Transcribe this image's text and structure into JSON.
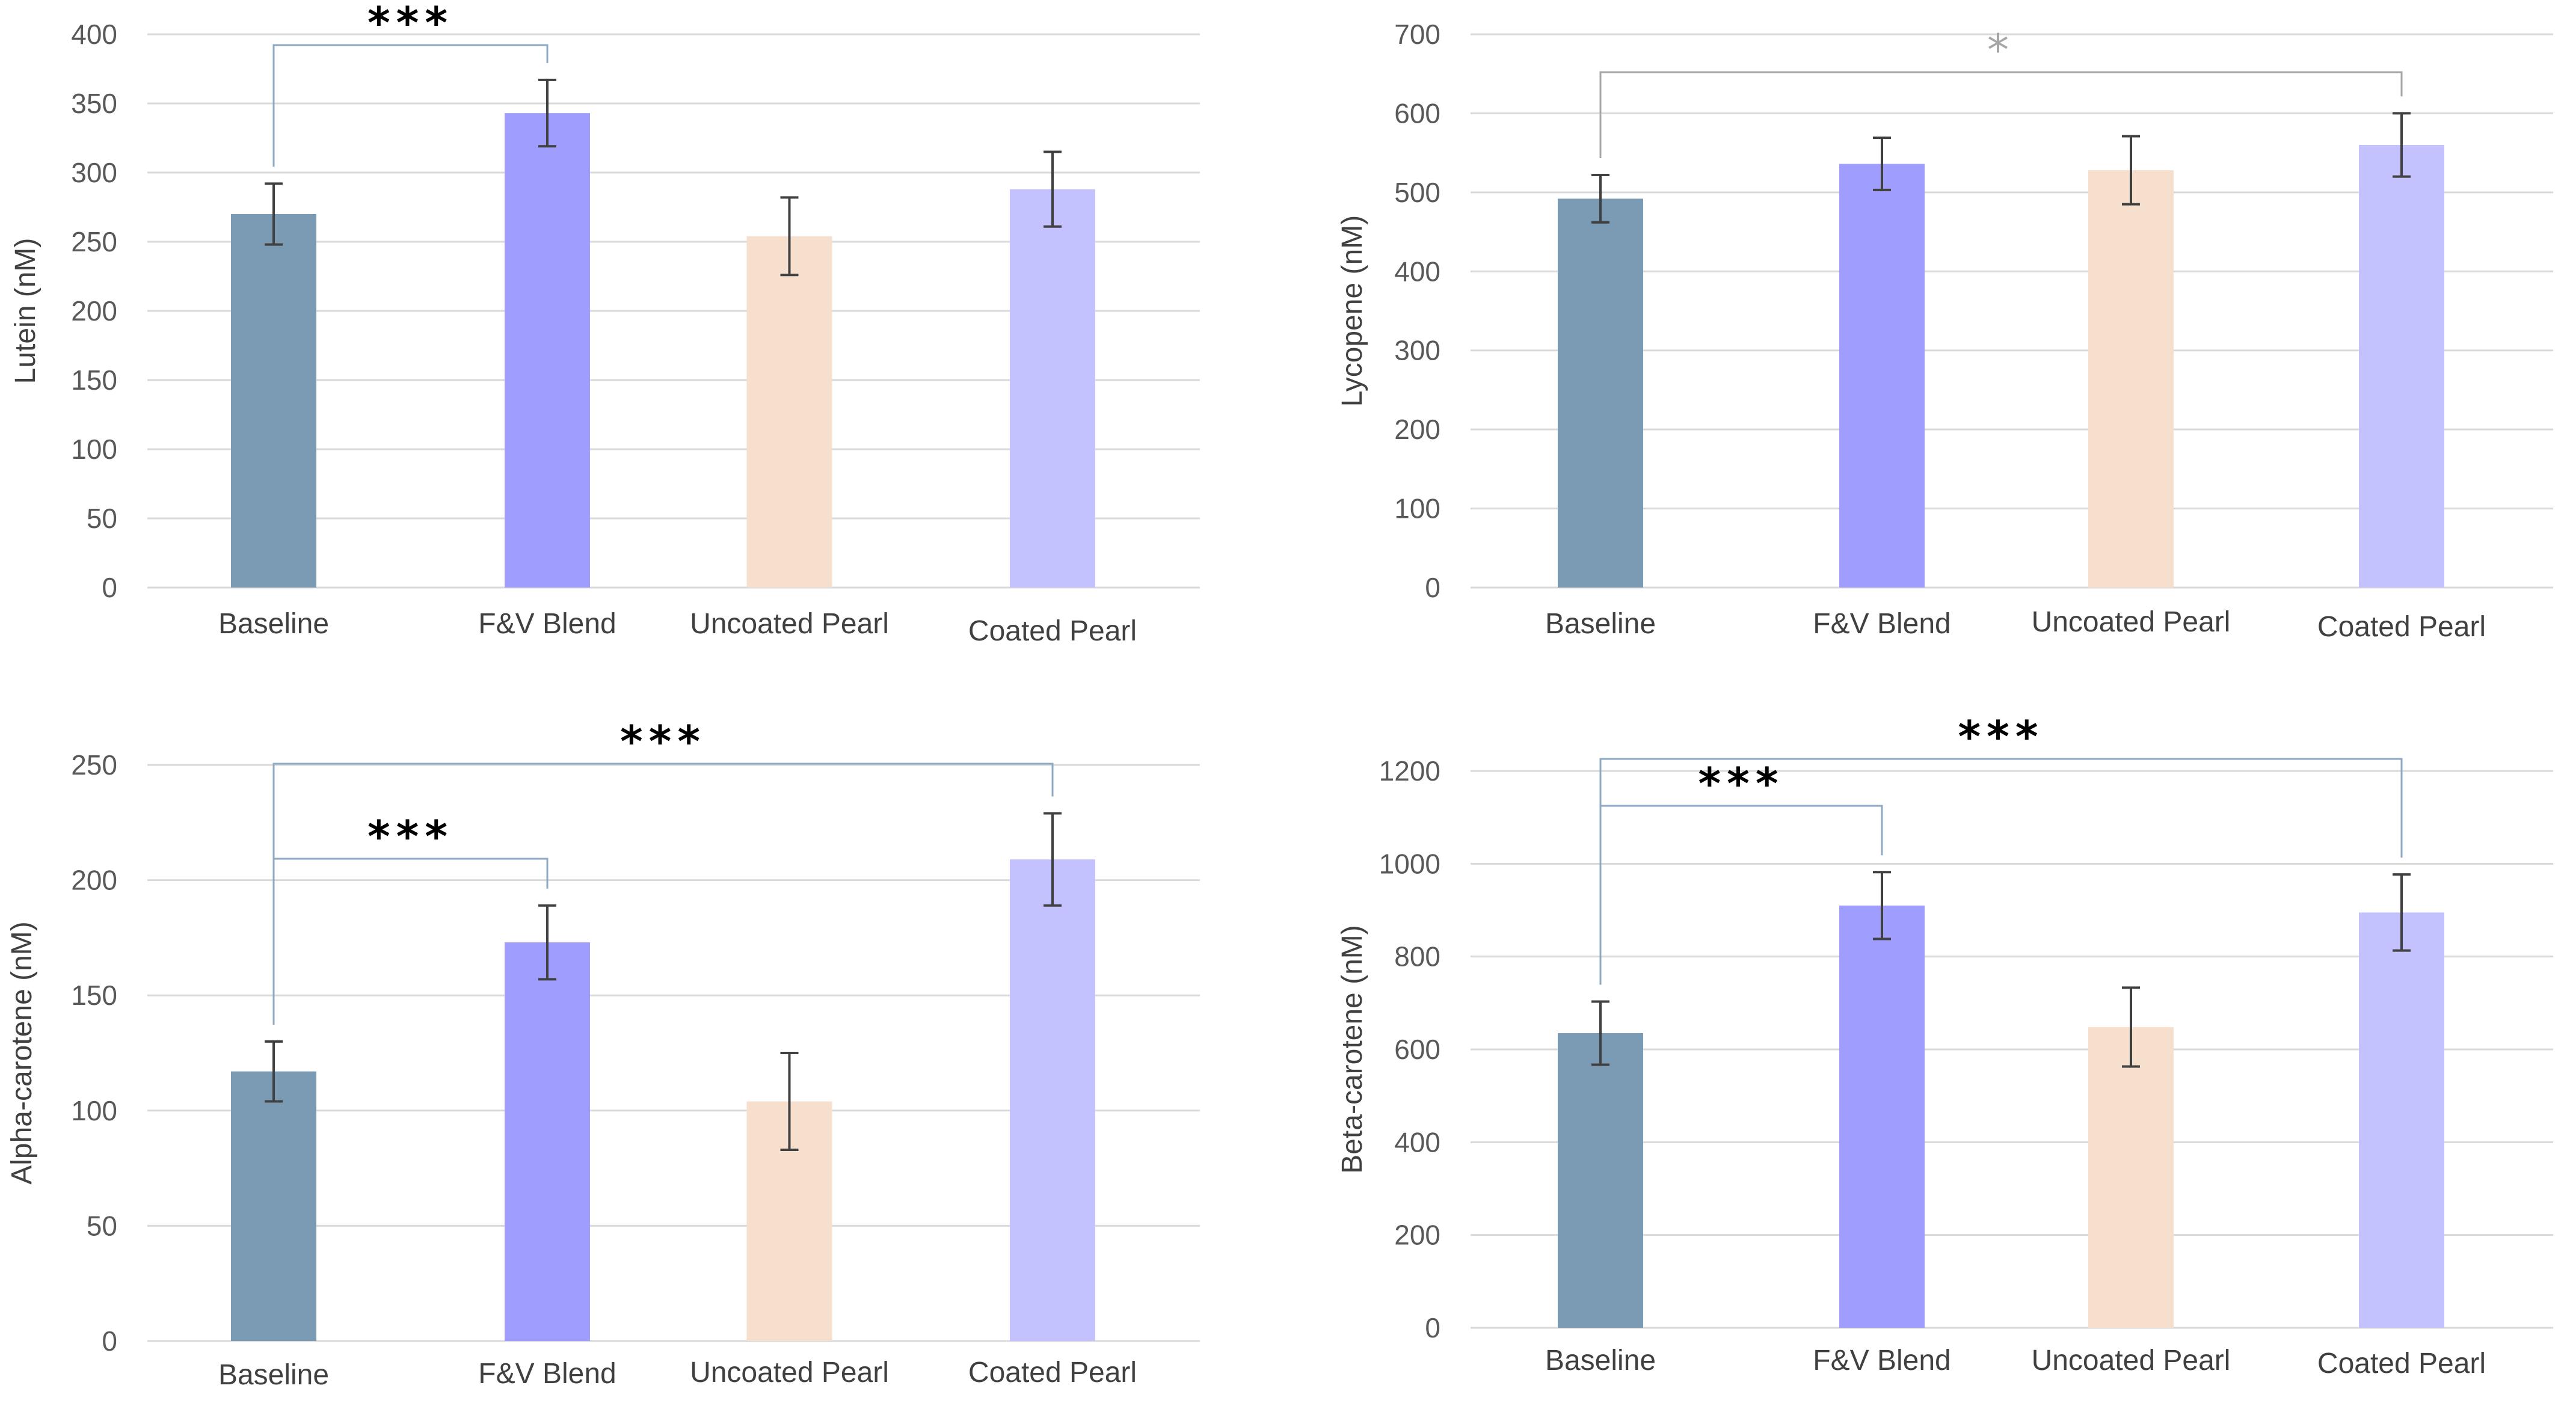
{
  "colors": {
    "Baseline": "#7b9ab4",
    "F&V Blend": "#9f9dfd",
    "Uncoated Pearl": "#f6dfcd",
    "Coated Pearl": "#c3c2fe",
    "grid": "#d9d9d9",
    "bracket": "#8ea9c4",
    "bracket_faint": "#a6a6a6",
    "error": "#404040"
  },
  "chart_data": [
    {
      "type": "bar",
      "ylabel": "Lutein (nM)",
      "categories": [
        "Baseline",
        "F&V Blend",
        "Uncoated Pearl",
        "Coated Pearl"
      ],
      "values": [
        270,
        343,
        254,
        288
      ],
      "errors": [
        22,
        24,
        28,
        27
      ],
      "ylim": [
        0,
        400
      ],
      "yticks": [
        0,
        50,
        100,
        150,
        200,
        250,
        300,
        350,
        400
      ],
      "significance": [
        {
          "from": 0,
          "to": 1,
          "label": "***",
          "faint": false
        }
      ]
    },
    {
      "type": "bar",
      "ylabel": "Lycopene (nM)",
      "categories": [
        "Baseline",
        "F&V Blend",
        "Uncoated Pearl",
        "Coated Pearl"
      ],
      "values": [
        492,
        536,
        528,
        560
      ],
      "errors": [
        30,
        33,
        43,
        40
      ],
      "ylim": [
        0,
        700
      ],
      "yticks": [
        0,
        100,
        200,
        300,
        400,
        500,
        600,
        700
      ],
      "significance": [
        {
          "from": 0,
          "to": 3,
          "label": "*",
          "faint": true
        }
      ]
    },
    {
      "type": "bar",
      "ylabel": "Alpha-carotene (nM)",
      "categories": [
        "Baseline",
        "F&V Blend",
        "Uncoated Pearl",
        "Coated Pearl"
      ],
      "values": [
        117,
        173,
        104,
        209
      ],
      "errors": [
        13,
        16,
        21,
        20
      ],
      "ylim": [
        0,
        250
      ],
      "yticks": [
        0,
        50,
        100,
        150,
        200,
        250
      ],
      "significance": [
        {
          "from": 0,
          "to": 1,
          "label": "***",
          "faint": false
        },
        {
          "from": 0,
          "to": 3,
          "label": "***",
          "faint": false
        }
      ]
    },
    {
      "type": "bar",
      "ylabel": "Beta-carotene (nM)",
      "categories": [
        "Baseline",
        "F&V Blend",
        "Uncoated Pearl",
        "Coated Pearl"
      ],
      "values": [
        635,
        910,
        648,
        895
      ],
      "errors": [
        68,
        72,
        85,
        82
      ],
      "ylim": [
        0,
        1200
      ],
      "yticks": [
        0,
        200,
        400,
        600,
        800,
        1000,
        1200
      ],
      "significance": [
        {
          "from": 0,
          "to": 1,
          "label": "***",
          "faint": false
        },
        {
          "from": 0,
          "to": 3,
          "label": "***",
          "faint": false
        }
      ]
    }
  ]
}
